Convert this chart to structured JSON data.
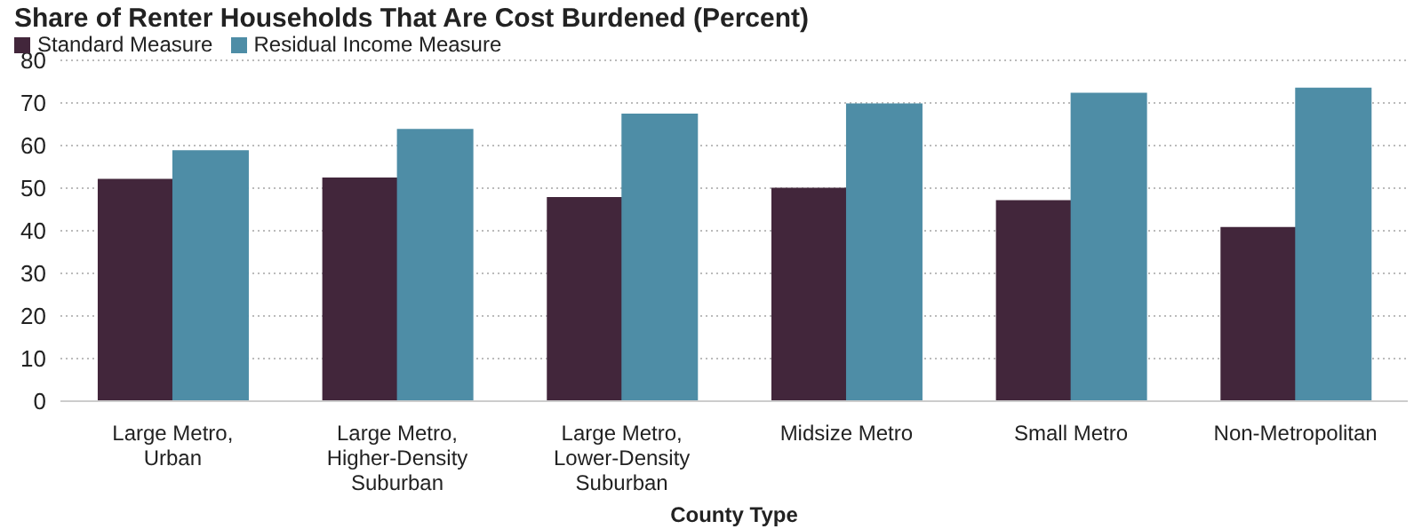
{
  "chart_data": {
    "type": "bar",
    "title": "Share of Renter Households That Are Cost Burdened (Percent)",
    "xlabel": "County Type",
    "categories": [
      "Large Metro, Urban",
      "Large Metro, Higher-Density Suburban",
      "Large Metro, Lower-Density Suburban",
      "Midsize Metro",
      "Small Metro",
      "Non-Metropolitan"
    ],
    "series": [
      {
        "name": "Standard Measure",
        "color": "#42263b",
        "values": [
          52.0,
          52.3,
          47.7,
          49.9,
          47.0,
          40.7
        ]
      },
      {
        "name": "Residual Income Measure",
        "color": "#4e8da6",
        "values": [
          58.7,
          63.7,
          67.3,
          69.7,
          72.2,
          73.4
        ]
      }
    ],
    "ylim": [
      0,
      80
    ],
    "yticks": [
      0,
      10,
      20,
      30,
      40,
      50,
      60,
      70,
      80
    ],
    "grid": "y",
    "legend": "top left"
  }
}
